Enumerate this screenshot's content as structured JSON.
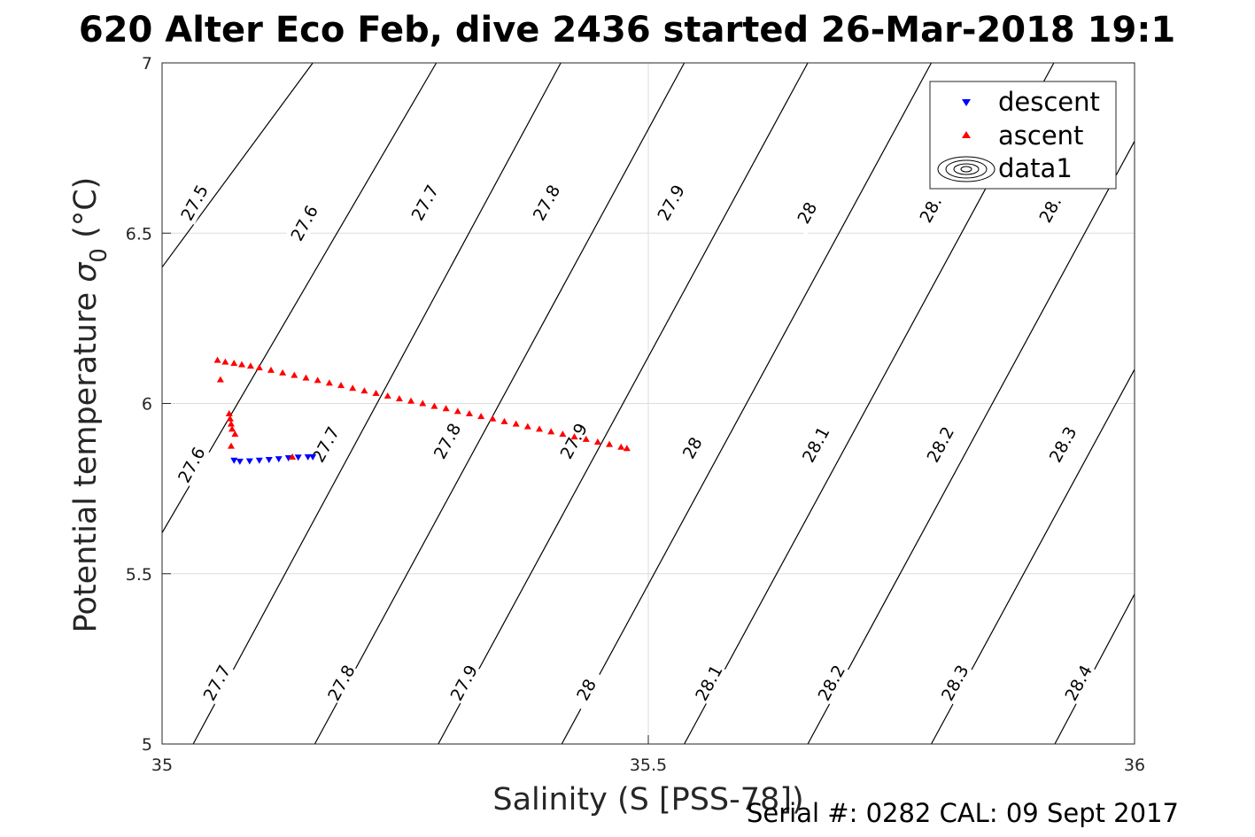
{
  "chart_data": {
    "type": "scatter",
    "title": "620 Alter Eco Feb, dive 2436 started 26-Mar-2018 19:1",
    "xlabel": "Salinity (S [PSS-78])",
    "ylabel_main": "Potential temperature ",
    "ylabel_sym": "σ",
    "ylabel_sub": "0",
    "ylabel_unit": " (°C)",
    "xlim": [
      35,
      36
    ],
    "ylim": [
      5,
      7
    ],
    "grid": true,
    "x_ticks": [
      "35",
      "35.5",
      "36"
    ],
    "y_ticks": [
      "5",
      "5.5",
      "6",
      "6.5",
      "7"
    ],
    "legend_position": "top-right",
    "series": [
      {
        "name": "descent",
        "marker": "triangle-down",
        "color": "#0000ff",
        "x": [
          35.074,
          35.08,
          35.09,
          35.1,
          35.11,
          35.12,
          35.13,
          35.14,
          35.15,
          35.155
        ],
        "y": [
          5.833,
          5.83,
          5.831,
          5.833,
          5.835,
          5.837,
          5.84,
          5.842,
          5.843,
          5.843
        ]
      },
      {
        "name": "ascent",
        "marker": "triangle-up",
        "color": "#ff0000",
        "x": [
          35.057,
          35.065,
          35.074,
          35.082,
          35.091,
          35.1,
          35.112,
          35.124,
          35.136,
          35.148,
          35.16,
          35.172,
          35.184,
          35.196,
          35.208,
          35.22,
          35.232,
          35.244,
          35.256,
          35.268,
          35.28,
          35.292,
          35.304,
          35.316,
          35.328,
          35.34,
          35.352,
          35.364,
          35.376,
          35.388,
          35.4,
          35.412,
          35.424,
          35.436,
          35.448,
          35.46,
          35.472,
          35.478,
          35.06,
          35.069,
          35.07,
          35.071,
          35.072,
          35.075,
          35.071,
          35.134
        ],
        "y": [
          6.127,
          6.122,
          6.118,
          6.114,
          6.11,
          6.105,
          6.098,
          6.09,
          6.083,
          6.075,
          6.068,
          6.06,
          6.053,
          6.045,
          6.037,
          6.03,
          6.022,
          6.014,
          6.007,
          6.0,
          5.992,
          5.985,
          5.977,
          5.97,
          5.962,
          5.955,
          5.947,
          5.94,
          5.932,
          5.925,
          5.917,
          5.91,
          5.902,
          5.895,
          5.887,
          5.88,
          5.872,
          5.868,
          6.07,
          5.97,
          5.955,
          5.94,
          5.925,
          5.91,
          5.875,
          5.843
        ]
      }
    ],
    "contour_legend_name": "data1",
    "contours": [
      {
        "label": "27.5",
        "x0": 35.0,
        "y0": 6.4,
        "x1": 35.155,
        "y1": 7.0
      },
      {
        "label": "27.6",
        "x0": 35.0,
        "y0": 5.62,
        "x1": 35.282,
        "y1": 7.0
      },
      {
        "label": "27.7",
        "x0": 35.032,
        "y0": 5.0,
        "x1": 35.41,
        "y1": 7.0
      },
      {
        "label": "27.8",
        "x0": 35.157,
        "y0": 5.0,
        "x1": 35.537,
        "y1": 7.0
      },
      {
        "label": "27.9",
        "x0": 35.284,
        "y0": 5.0,
        "x1": 35.664,
        "y1": 7.0
      },
      {
        "label": "28",
        "x0": 35.411,
        "y0": 5.0,
        "x1": 35.791,
        "y1": 7.0
      },
      {
        "label": "28.1",
        "x0": 35.537,
        "y0": 5.0,
        "x1": 35.917,
        "y1": 7.0
      },
      {
        "label": "28.2",
        "x0": 35.664,
        "y0": 5.0,
        "x1": 36.0,
        "y1": 6.77
      },
      {
        "label": "28.3",
        "x0": 35.791,
        "y0": 5.0,
        "x1": 36.0,
        "y1": 6.1
      },
      {
        "label": "28.4",
        "x0": 35.918,
        "y0": 5.0,
        "x1": 36.0,
        "y1": 5.44
      }
    ],
    "contour_labels": [
      {
        "text": "27.5",
        "x": 35.033,
        "y": 6.59
      },
      {
        "text": "27.6",
        "x": 35.146,
        "y": 6.53
      },
      {
        "text": "27.7",
        "x": 35.27,
        "y": 6.59
      },
      {
        "text": "27.8",
        "x": 35.395,
        "y": 6.59
      },
      {
        "text": "27.9",
        "x": 35.523,
        "y": 6.59
      },
      {
        "text": "28",
        "x": 35.663,
        "y": 6.56
      },
      {
        "text": "28.",
        "x": 35.79,
        "y": 6.57
      },
      {
        "text": "28.",
        "x": 35.913,
        "y": 6.57
      },
      {
        "text": "27.6",
        "x": 35.03,
        "y": 5.82
      },
      {
        "text": "27.7",
        "x": 35.168,
        "y": 5.88
      },
      {
        "text": "27.8",
        "x": 35.293,
        "y": 5.89
      },
      {
        "text": "27.9",
        "x": 35.423,
        "y": 5.89
      },
      {
        "text": "28",
        "x": 35.545,
        "y": 5.87
      },
      {
        "text": "28.1",
        "x": 35.672,
        "y": 5.88
      },
      {
        "text": "28.2",
        "x": 35.8,
        "y": 5.88
      },
      {
        "text": "28.3",
        "x": 35.926,
        "y": 5.88
      },
      {
        "text": "27.7",
        "x": 35.056,
        "y": 5.18
      },
      {
        "text": "27.8",
        "x": 35.184,
        "y": 5.18
      },
      {
        "text": "27.9",
        "x": 35.31,
        "y": 5.18
      },
      {
        "text": "28",
        "x": 35.436,
        "y": 5.16
      },
      {
        "text": "28.1",
        "x": 35.562,
        "y": 5.18
      },
      {
        "text": "28.2",
        "x": 35.688,
        "y": 5.18
      },
      {
        "text": "28.3",
        "x": 35.815,
        "y": 5.18
      },
      {
        "text": "28.4",
        "x": 35.942,
        "y": 5.18
      }
    ]
  },
  "footer": "Serial #: 0282  CAL: 09 Sept 2017"
}
